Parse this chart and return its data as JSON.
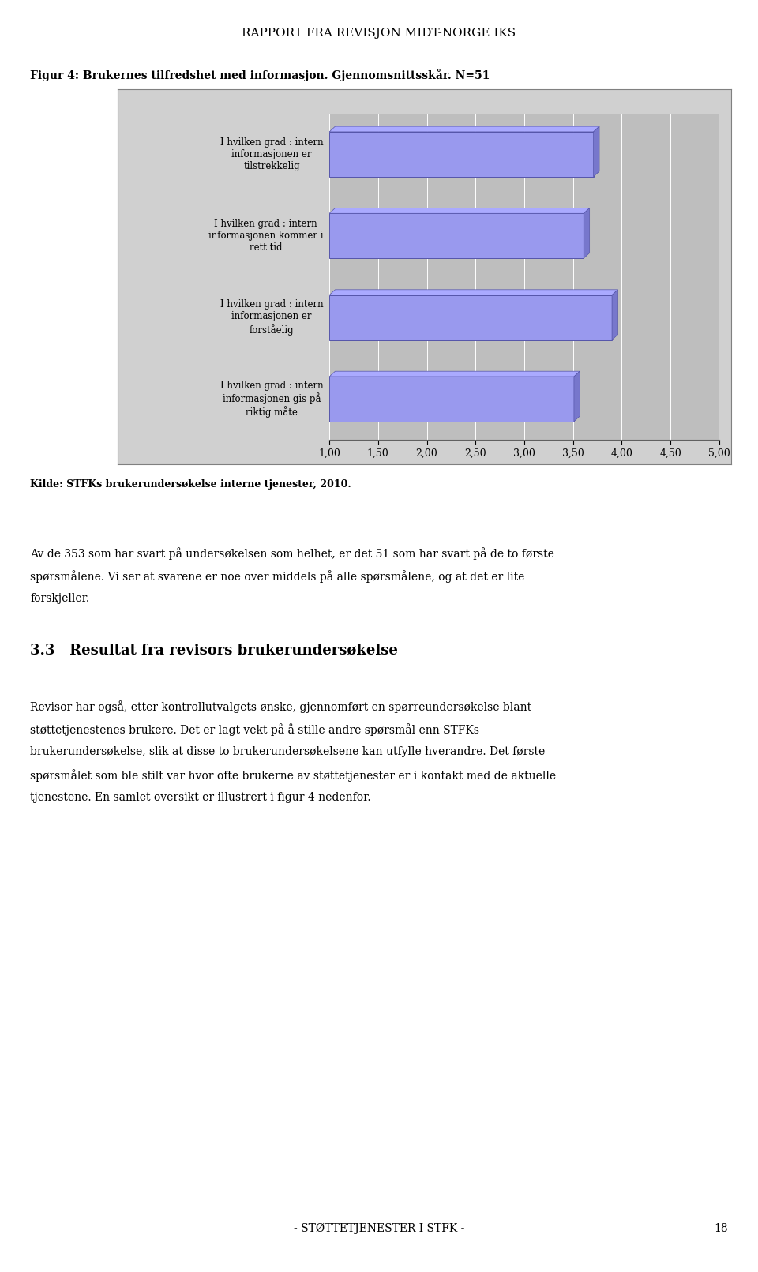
{
  "title_header": "RAPPORT FRA REVISJON MIDT-NORGE IKS",
  "figure_title": "Figur 4: Brukernes tilfredshet med informasjon. Gjennomsnittsskår. N=51",
  "source_text": "Kilde: STFKs brukerundersøkelse interne tjenester, 2010.",
  "footer_text": "- STØTTETJENESTER I STFK -",
  "page_number": "18",
  "categories": [
    "I hvilken grad : intern\ninformasjonen er\ntilstrekkelig",
    "I hvilken grad : intern\ninformasjonen kommer i\nrett tid",
    "I hvilken grad : intern\ninformasjonen er\nforståelig",
    "I hvilken grad : intern\ninformasjonen gis på\nriktig måte"
  ],
  "values": [
    3.71,
    3.61,
    3.9,
    3.51
  ],
  "bar_color": "#9999EE",
  "bar_edge_color": "#5555AA",
  "bar_side_color": "#7777CC",
  "bar_top_color": "#AAAAFF",
  "background_color": "#FFFFFF",
  "plot_bg_color": "#BEBEBE",
  "plot_bg_outer": "#D0D0D0",
  "xlim": [
    1.0,
    5.0
  ],
  "xticks": [
    1.0,
    1.5,
    2.0,
    2.5,
    3.0,
    3.5,
    4.0,
    4.5,
    5.0
  ],
  "grid_color": "#FFFFFF",
  "bar_height": 0.55,
  "body_text1": "Av de 353 som har svart på undersøkelsen som helhet, er det 51 som har svart på de to første spørsmålene. Vi ser at svarene er noe over middels på alle spørsmålene, og at det er lite forskjeller.",
  "section_heading": "3.3   Resultat fra revisors brukerundersøkelse",
  "body_text2": "Revisor har også, etter kontrollutvalgets ønske, gjennomført en spørreundersøkelse blant støttetjenestenes brukere. Det er lagt vekt på å stille andre spørsmål enn STFKs brukerundersøkelse, slik at disse to brukerundersøkelsene kan utfylle hverandre. Det første spørsmålet som ble stilt var hvor ofte brukerne av støttetjenester er i kontakt med de aktuelle tjenestene. En samlet oversikt er illustrert i figur 4 nedenfor."
}
